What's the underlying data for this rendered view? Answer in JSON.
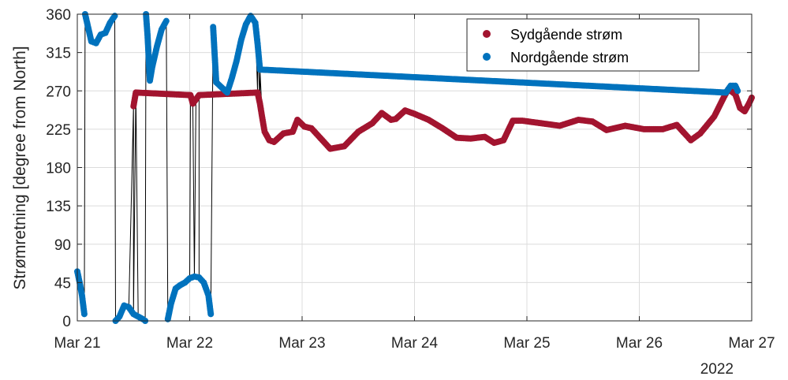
{
  "chart_data": {
    "type": "scatter",
    "title": "",
    "xlabel": "",
    "ylabel": "Strømretning [degree from North]",
    "x_year_label": "2022",
    "x_ticks": [
      "Mar 21",
      "Mar 22",
      "Mar 23",
      "Mar 24",
      "Mar 25",
      "Mar 26",
      "Mar 27"
    ],
    "xlim": [
      "2022-03-21T00:00",
      "2022-03-27T00:00"
    ],
    "ylim": [
      0,
      360
    ],
    "y_ticks": [
      0,
      45,
      90,
      135,
      180,
      225,
      270,
      315,
      360
    ],
    "grid": true,
    "legend_position": "top-right",
    "connecting_line_color": "#000000",
    "series": [
      {
        "name": "Sydgående strøm",
        "color": "#A2142F",
        "points": [
          [
            "2022-03-21T12:00",
            252
          ],
          [
            "2022-03-21T12:30",
            268
          ],
          [
            "2022-03-22T00:10",
            265
          ],
          [
            "2022-03-22T00:40",
            255
          ],
          [
            "2022-03-22T01:20",
            260
          ],
          [
            "2022-03-22T02:00",
            265
          ],
          [
            "2022-03-22T14:30",
            268
          ],
          [
            "2022-03-22T15:00",
            255
          ],
          [
            "2022-03-22T15:30",
            238
          ],
          [
            "2022-03-22T16:00",
            222
          ],
          [
            "2022-03-22T17:00",
            212
          ],
          [
            "2022-03-22T18:00",
            210
          ],
          [
            "2022-03-22T20:00",
            220
          ],
          [
            "2022-03-22T22:00",
            222
          ],
          [
            "2022-03-22T23:00",
            236
          ],
          [
            "2022-03-23T00:30",
            228
          ],
          [
            "2022-03-23T02:00",
            226
          ],
          [
            "2022-03-23T04:00",
            214
          ],
          [
            "2022-03-23T06:00",
            202
          ],
          [
            "2022-03-23T09:00",
            205
          ],
          [
            "2022-03-23T12:00",
            222
          ],
          [
            "2022-03-23T15:00",
            232
          ],
          [
            "2022-03-23T17:00",
            244
          ],
          [
            "2022-03-23T19:00",
            236
          ],
          [
            "2022-03-23T20:00",
            237
          ],
          [
            "2022-03-23T22:00",
            247
          ],
          [
            "2022-03-24T00:00",
            243
          ],
          [
            "2022-03-24T03:00",
            236
          ],
          [
            "2022-03-24T06:00",
            226
          ],
          [
            "2022-03-24T09:00",
            215
          ],
          [
            "2022-03-24T12:00",
            214
          ],
          [
            "2022-03-24T15:00",
            216
          ],
          [
            "2022-03-24T17:00",
            209
          ],
          [
            "2022-03-24T19:00",
            212
          ],
          [
            "2022-03-24T21:00",
            235
          ],
          [
            "2022-03-24T23:00",
            235
          ],
          [
            "2022-03-25T03:00",
            232
          ],
          [
            "2022-03-25T07:00",
            229
          ],
          [
            "2022-03-25T11:00",
            236
          ],
          [
            "2022-03-25T14:00",
            234
          ],
          [
            "2022-03-25T17:00",
            224
          ],
          [
            "2022-03-25T21:00",
            229
          ],
          [
            "2022-03-26T01:00",
            225
          ],
          [
            "2022-03-26T05:00",
            225
          ],
          [
            "2022-03-26T08:00",
            230
          ],
          [
            "2022-03-26T10:00",
            218
          ],
          [
            "2022-03-26T11:00",
            212
          ],
          [
            "2022-03-26T13:00",
            220
          ],
          [
            "2022-03-26T16:00",
            240
          ],
          [
            "2022-03-26T18:00",
            262
          ],
          [
            "2022-03-26T19:00",
            272
          ],
          [
            "2022-03-26T20:30",
            266
          ],
          [
            "2022-03-26T21:30",
            250
          ],
          [
            "2022-03-26T22:30",
            246
          ],
          [
            "2022-03-26T23:30",
            256
          ],
          [
            "2022-03-27T00:00",
            262
          ]
        ]
      },
      {
        "name": "Nordgående strøm",
        "color": "#0072BD",
        "points": [
          [
            "2022-03-21T00:00",
            58
          ],
          [
            "2022-03-21T00:30",
            45
          ],
          [
            "2022-03-21T01:00",
            30
          ],
          [
            "2022-03-21T01:30",
            8
          ],
          [
            "2022-03-21T01:40",
            360
          ],
          [
            "2022-03-21T02:00",
            352
          ],
          [
            "2022-03-21T02:30",
            340
          ],
          [
            "2022-03-21T03:00",
            328
          ],
          [
            "2022-03-21T04:00",
            326
          ],
          [
            "2022-03-21T05:00",
            336
          ],
          [
            "2022-03-21T06:00",
            338
          ],
          [
            "2022-03-21T07:00",
            350
          ],
          [
            "2022-03-21T08:00",
            358
          ],
          [
            "2022-03-21T08:10",
            0
          ],
          [
            "2022-03-21T09:00",
            5
          ],
          [
            "2022-03-21T10:00",
            18
          ],
          [
            "2022-03-21T11:00",
            16
          ],
          [
            "2022-03-21T12:00",
            8
          ],
          [
            "2022-03-21T13:00",
            5
          ],
          [
            "2022-03-21T14:00",
            2
          ],
          [
            "2022-03-21T14:30",
            0
          ],
          [
            "2022-03-21T14:40",
            360
          ],
          [
            "2022-03-21T15:00",
            335
          ],
          [
            "2022-03-21T15:30",
            282
          ],
          [
            "2022-03-21T16:00",
            298
          ],
          [
            "2022-03-21T17:00",
            322
          ],
          [
            "2022-03-21T18:00",
            342
          ],
          [
            "2022-03-21T19:00",
            352
          ],
          [
            "2022-03-21T19:20",
            2
          ],
          [
            "2022-03-21T20:00",
            20
          ],
          [
            "2022-03-21T21:00",
            38
          ],
          [
            "2022-03-21T22:00",
            42
          ],
          [
            "2022-03-21T23:00",
            45
          ],
          [
            "2022-03-22T00:00",
            50
          ],
          [
            "2022-03-22T01:00",
            52
          ],
          [
            "2022-03-22T02:00",
            51
          ],
          [
            "2022-03-22T03:00",
            45
          ],
          [
            "2022-03-22T04:00",
            30
          ],
          [
            "2022-03-22T04:30",
            8
          ],
          [
            "2022-03-22T05:00",
            345
          ],
          [
            "2022-03-22T05:20",
            312
          ],
          [
            "2022-03-22T05:40",
            280
          ],
          [
            "2022-03-22T08:00",
            268
          ],
          [
            "2022-03-22T09:00",
            285
          ],
          [
            "2022-03-22T10:00",
            305
          ],
          [
            "2022-03-22T11:00",
            330
          ],
          [
            "2022-03-22T12:00",
            348
          ],
          [
            "2022-03-22T13:00",
            358
          ],
          [
            "2022-03-22T14:00",
            350
          ],
          [
            "2022-03-22T14:30",
            325
          ],
          [
            "2022-03-22T15:00",
            295
          ],
          [
            "2022-03-26T18:30",
            268
          ],
          [
            "2022-03-26T19:30",
            276
          ],
          [
            "2022-03-26T20:30",
            276
          ],
          [
            "2022-03-26T21:00",
            270
          ]
        ]
      }
    ]
  }
}
